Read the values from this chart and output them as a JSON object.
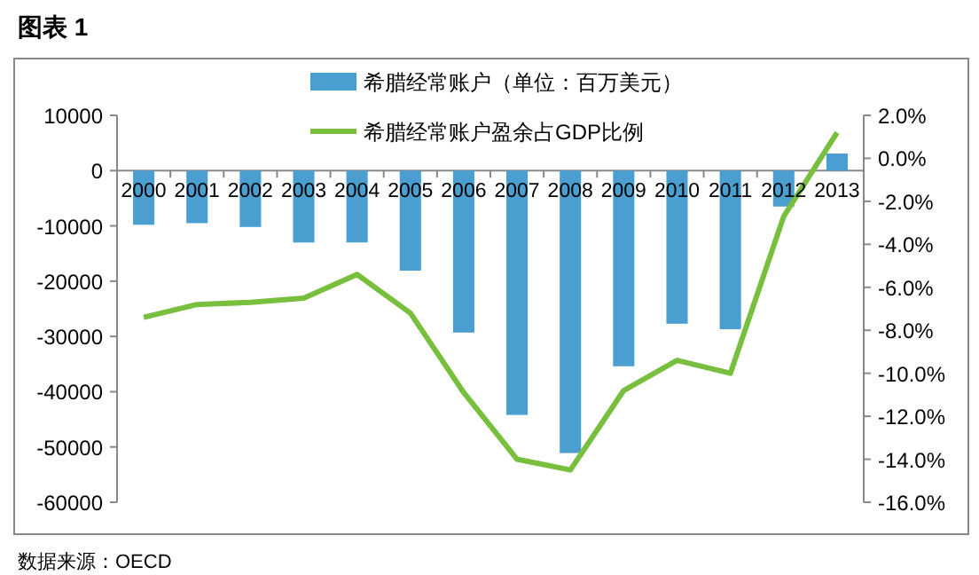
{
  "chart_data": {
    "type": "bar",
    "title": "图表 1",
    "categories": [
      "2000",
      "2001",
      "2002",
      "2003",
      "2004",
      "2005",
      "2006",
      "2007",
      "2008",
      "2009",
      "2010",
      "2011",
      "2012",
      "2013"
    ],
    "series": [
      {
        "name": "希腊经常账户（单位：百万美元）",
        "color": "#4a9fd0",
        "values": [
          -9800,
          -9500,
          -10200,
          -13000,
          -13000,
          -18100,
          -29300,
          -44200,
          -51100,
          -35400,
          -27700,
          -28700,
          -6500,
          3100
        ]
      },
      {
        "name": "希腊经常账户盈余占GDP比例",
        "type": "line",
        "axis": "y2",
        "color": "#77bf3c",
        "values": [
          -7.4,
          -6.8,
          -6.7,
          -6.5,
          -5.4,
          -7.2,
          -10.9,
          -14.0,
          -14.5,
          -10.8,
          -9.4,
          -10.0,
          -2.7,
          1.2
        ]
      }
    ],
    "ylim": [
      -60000,
      10000
    ],
    "yticks": [
      -60000,
      -50000,
      -40000,
      -30000,
      -20000,
      -10000,
      0,
      10000
    ],
    "y2lim": [
      -16,
      2
    ],
    "y2ticks": [
      {
        "value": -16,
        "label": "-16.0%"
      },
      {
        "value": -14,
        "label": "-14.0%"
      },
      {
        "value": -12,
        "label": "-12.0%"
      },
      {
        "value": -10,
        "label": "-10.0%"
      },
      {
        "value": -8,
        "label": "-8.0%"
      },
      {
        "value": -6,
        "label": "-6.0%"
      },
      {
        "value": -4,
        "label": "-4.0%"
      },
      {
        "value": -2,
        "label": "-2.0%"
      },
      {
        "value": 0,
        "label": "0.0%"
      },
      {
        "value": 2,
        "label": "2.0%"
      }
    ],
    "legend": "top",
    "grid": false,
    "marker": "none",
    "annotations": [
      "数据来源：OECD"
    ]
  }
}
